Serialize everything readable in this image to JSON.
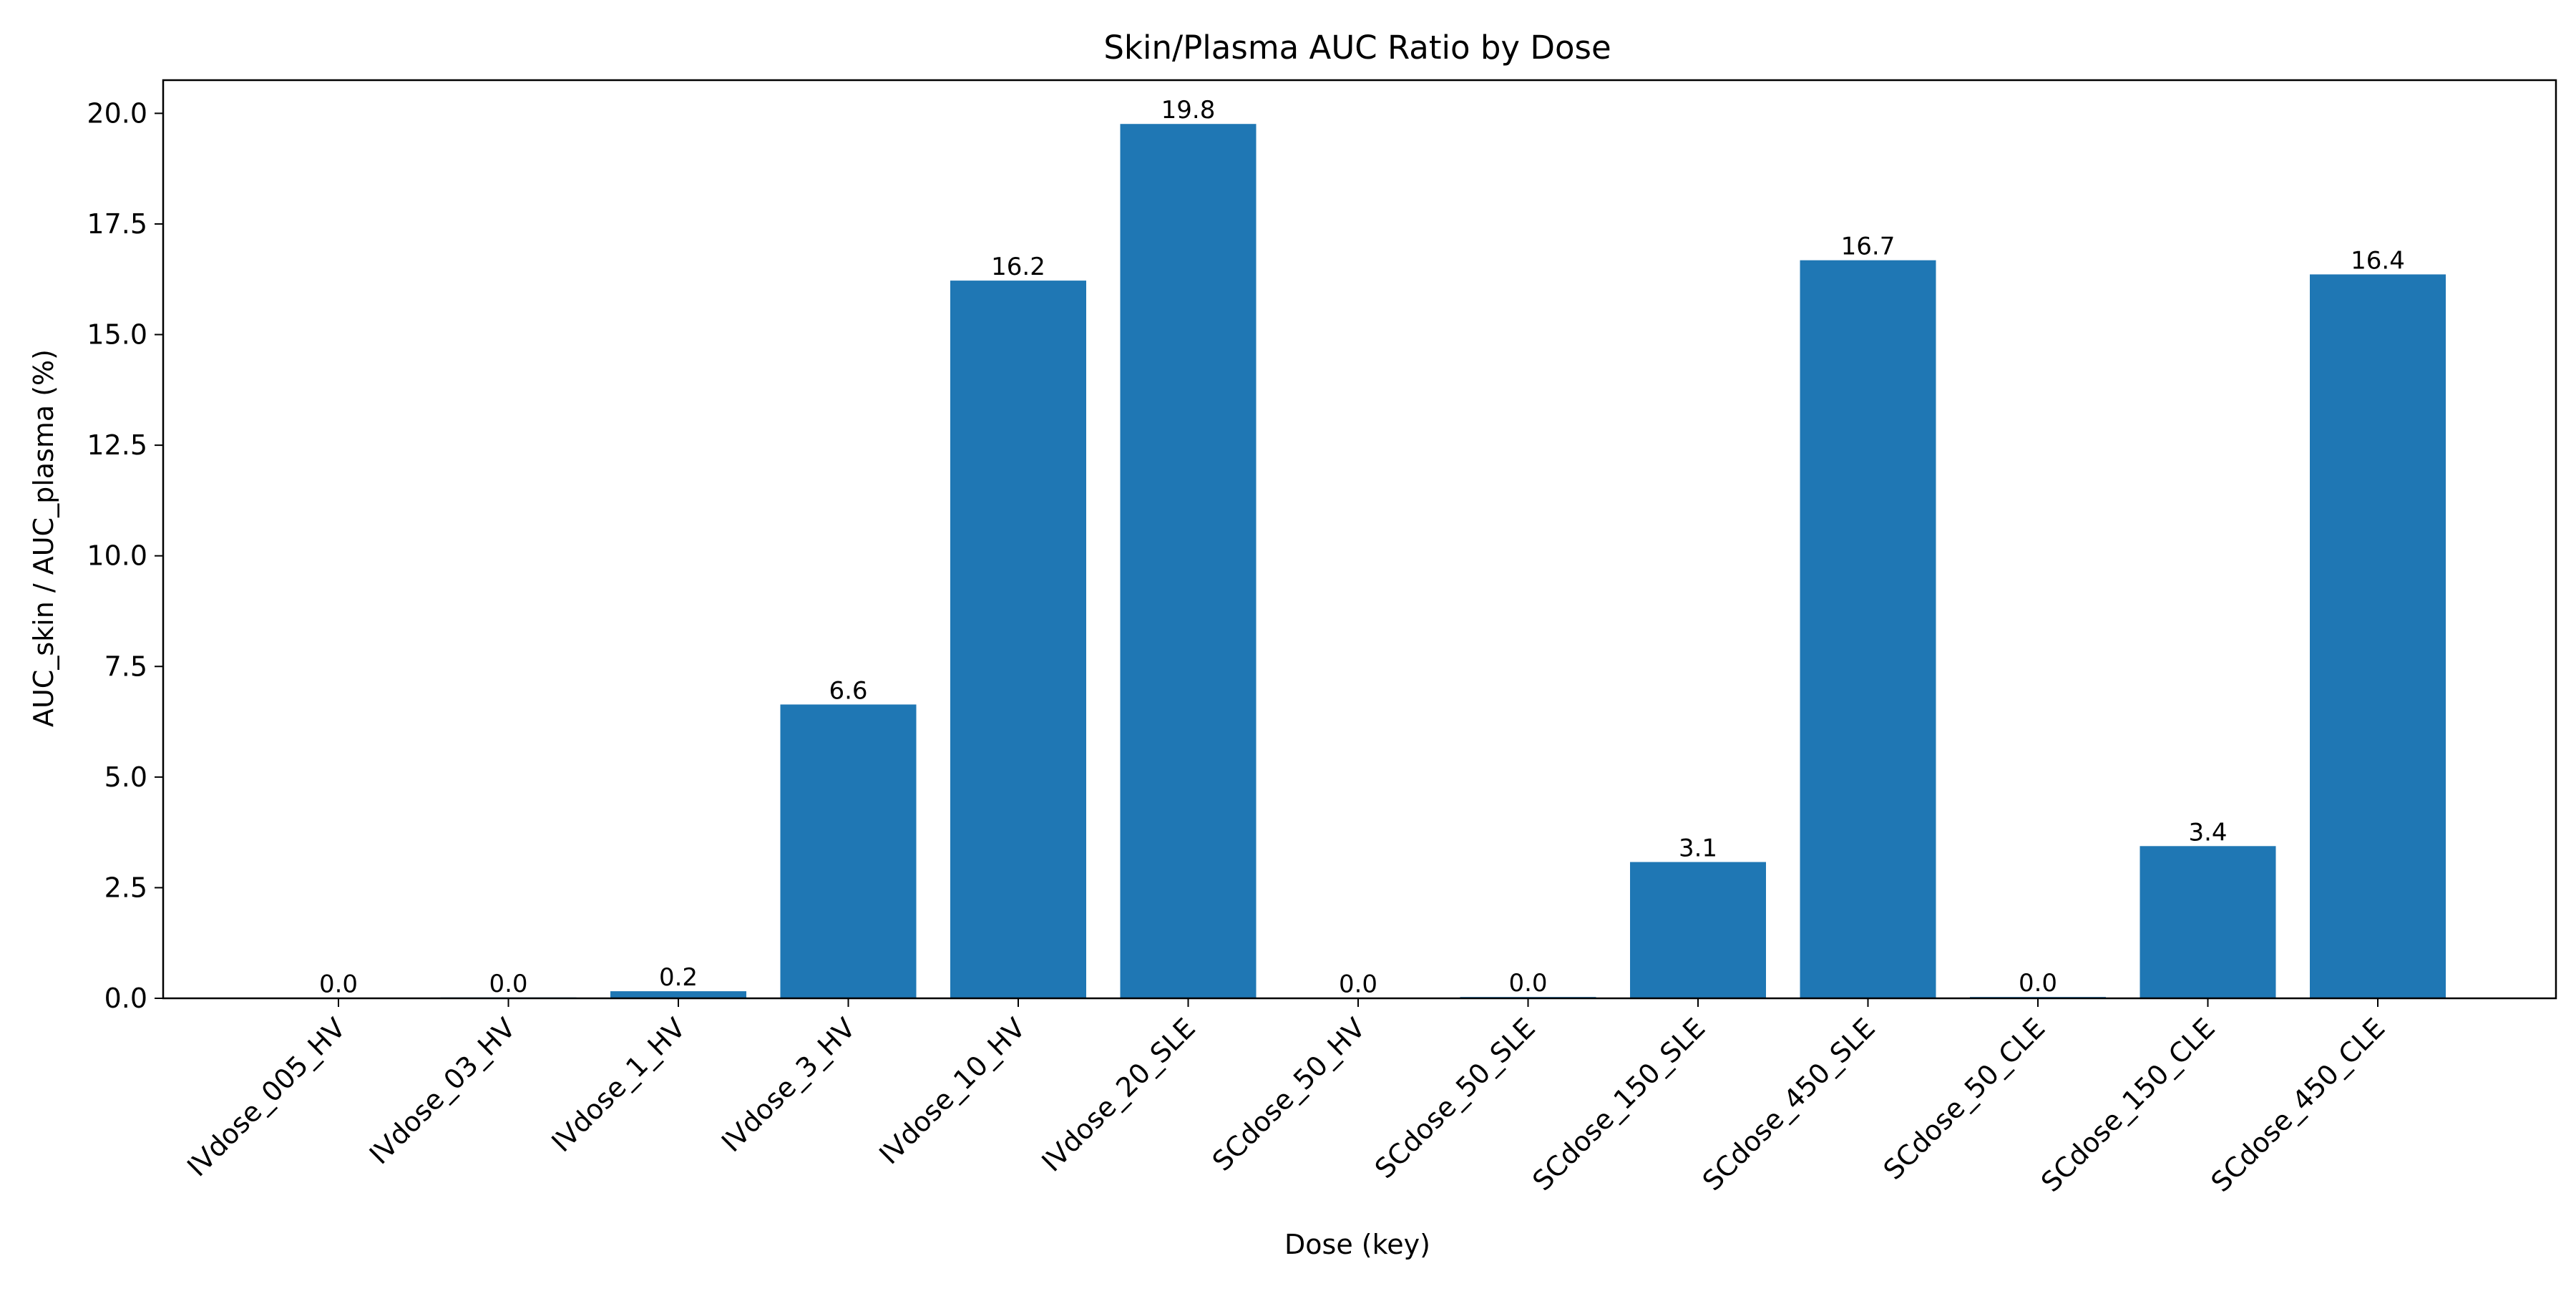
{
  "chart_data": {
    "type": "bar",
    "title": "Skin/Plasma AUC Ratio by Dose",
    "xlabel": "Dose (key)",
    "ylabel": "AUC_skin / AUC_plasma (%)",
    "categories": [
      "IVdose_005_HV",
      "IVdose_03_HV",
      "IVdose_1_HV",
      "IVdose_3_HV",
      "IVdose_10_HV",
      "IVdose_20_SLE",
      "SCdose_50_HV",
      "SCdose_50_SLE",
      "SCdose_150_SLE",
      "SCdose_450_SLE",
      "SCdose_50_CLE",
      "SCdose_150_CLE",
      "SCdose_450_CLE"
    ],
    "values": [
      0.01,
      0.02,
      0.16,
      6.64,
      16.22,
      19.76,
      0.01,
      0.03,
      3.08,
      16.68,
      0.03,
      3.44,
      16.36
    ],
    "data_labels": [
      "0.0",
      "0.0",
      "0.2",
      "6.6",
      "16.2",
      "19.8",
      "0.0",
      "0.0",
      "3.1",
      "16.7",
      "0.0",
      "3.4",
      "16.4"
    ],
    "ylim": [
      0,
      20.75
    ],
    "yticks": [
      0.0,
      2.5,
      5.0,
      7.5,
      10.0,
      12.5,
      15.0,
      17.5,
      20.0
    ],
    "ytick_labels": [
      "0.0",
      "2.5",
      "5.0",
      "7.5",
      "10.0",
      "12.5",
      "15.0",
      "17.5",
      "20.0"
    ],
    "bar_color": "#1f77b4",
    "grid": false,
    "legend": "none"
  }
}
